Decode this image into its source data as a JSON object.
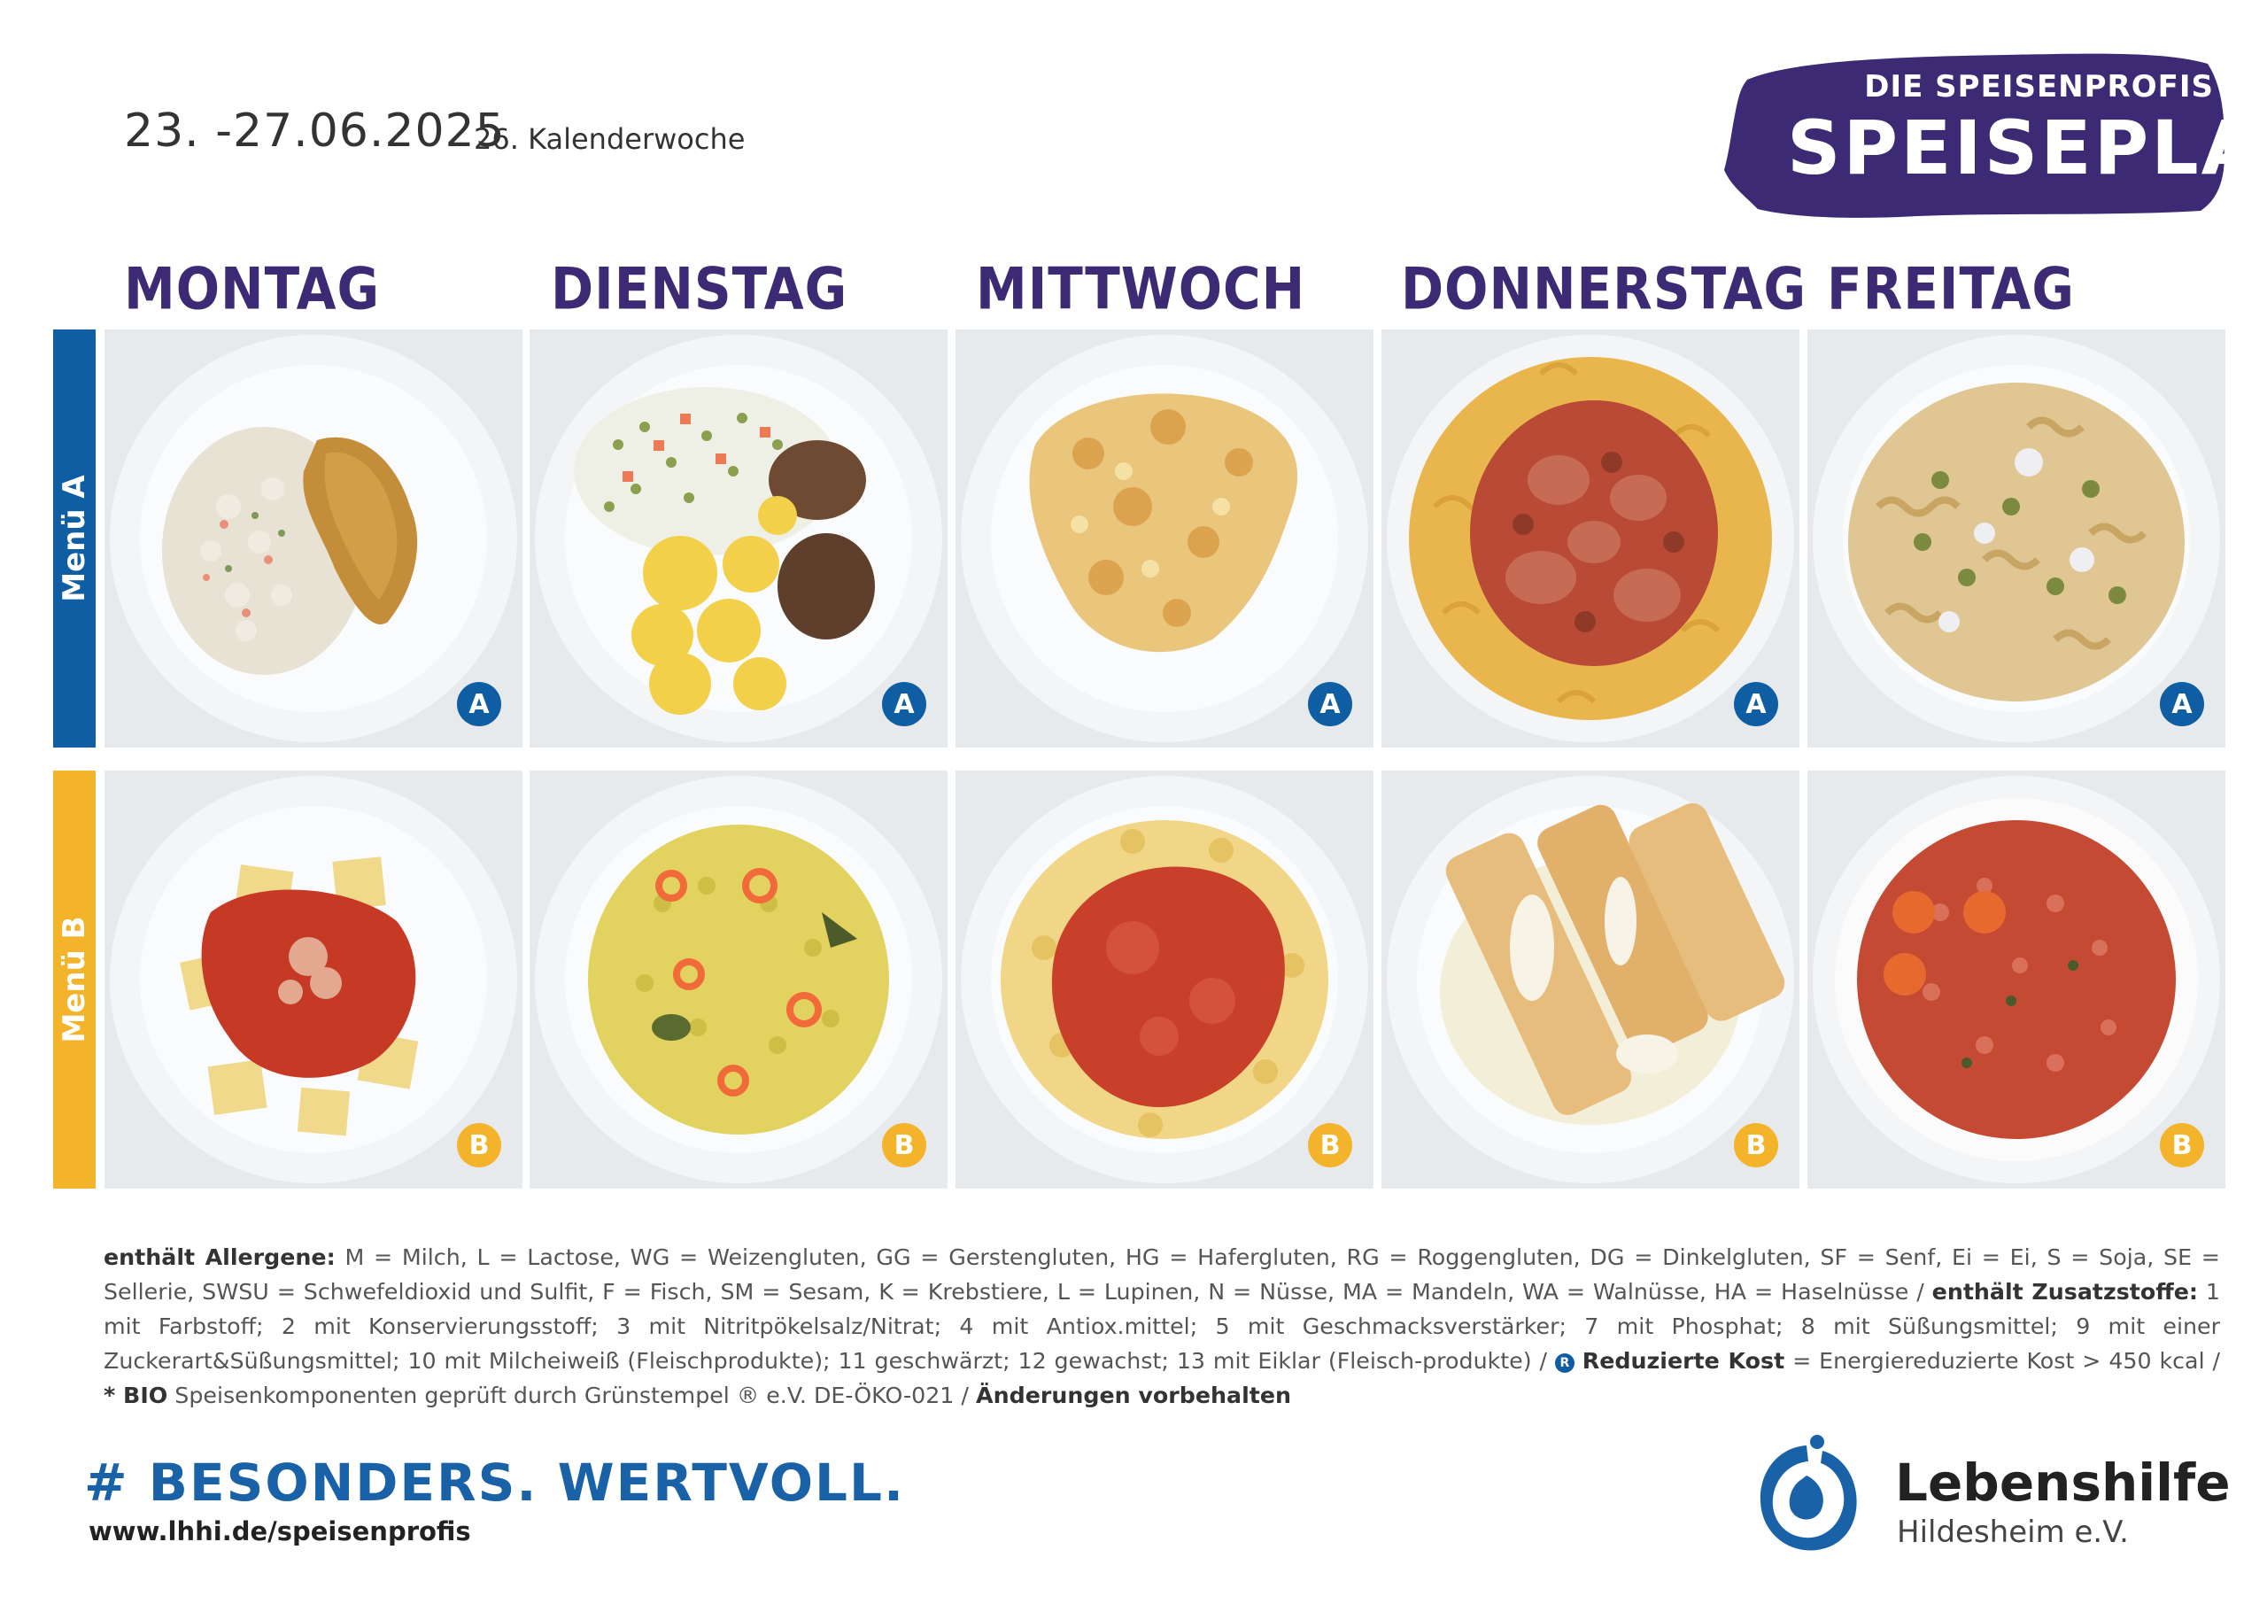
{
  "header": {
    "date_range": "23. -27.06.2025",
    "calendar_week": "26. Kalenderwoche",
    "brand_sub": "DIE SPEISENPROFIS",
    "brand_main": "SPEISEPLAN"
  },
  "days": [
    "MONTAG",
    "DIENSTAG",
    "MITTWOCH",
    "DONNERSTAG",
    "FREITAG"
  ],
  "menus": [
    {
      "label": "Menü A",
      "badge": "A"
    },
    {
      "label": "Menü B",
      "badge": "B"
    }
  ],
  "colors": {
    "brand_purple": "#3c2a74",
    "menu_a_blue": "#0f5ea3",
    "menu_b_yellow": "#f3b32a",
    "lebenshilfe_blue": "#1a62a8"
  },
  "legend": {
    "allergens_label": "enthält Allergene:",
    "allergens_text": "M = Milch, L = Lactose, WG = Weizengluten, GG = Gerstengluten, HG = Hafergluten, RG = Roggengluten, DG = Dinkelgluten, SF = Senf, Ei = Ei, S = Soja, SE = Sellerie, SWSU = Schwefeldioxid und Sulfit, F = Fisch, SM = Sesam, K = Krebstiere, L = Lupinen, N = Nüsse, MA = Mandeln, WA = Walnüsse, HA = Haselnüsse /",
    "additives_label": "enthält Zusatzstoffe:",
    "additives_text": "1 mit Farbstoff; 2 mit Konservierungsstoff; 3 mit Nitritpökelsalz/Nitrat; 4 mit Antiox.mittel; 5 mit Geschmacksverstärker; 7 mit Phosphat; 8 mit Süßungsmittel; 9 mit einer Zuckerart&Süßungsmittel; 10 mit Milcheiweiß (Fleischprodukte); 11 geschwärzt; 12 gewachst; 13 mit Eiklar (Fleisch-produkte) /",
    "reduced_mark": "R",
    "reduced_label": "Reduzierte Kost",
    "reduced_text": "= Energiereduzierte Kost > 450 kcal /",
    "bio_label": "* BIO",
    "bio_text": "Speisenkomponenten geprüft durch Grünstempel ® e.V. DE-ÖKO-021 /",
    "changes_label": "Änderungen vorbehalten"
  },
  "footer": {
    "hashtag": "# BESONDERS. WERTVOLL.",
    "url": "www.lhhi.de/speisenprofis",
    "org_name": "Lebenshilfe",
    "org_city": "Hildesheim e.V."
  }
}
